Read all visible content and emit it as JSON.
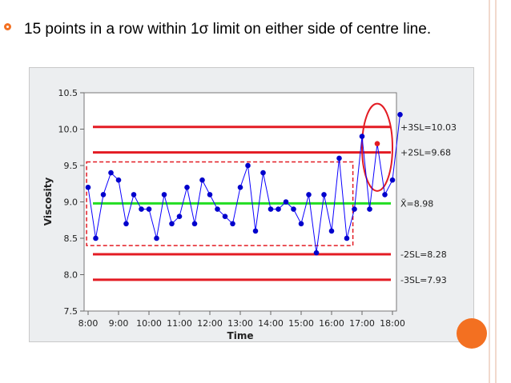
{
  "slide": {
    "bullet_text": "15 points in a row within 1σ limit on either side of centre line."
  },
  "colors": {
    "accent": "#f37021",
    "control_line": "#e31b23",
    "centre_line": "#22dd22",
    "series": "#0b00ff",
    "point": "#0000cc",
    "highlight_point": "#e31b23"
  },
  "chart_data": {
    "type": "line",
    "xlabel": "Time",
    "ylabel": "Viscosity",
    "ylim": [
      7.5,
      10.5
    ],
    "yticks": [
      "7.5",
      "8.0",
      "8.5",
      "9.0",
      "9.5",
      "10.0",
      "10.5"
    ],
    "xticks": [
      "8:00",
      "9:00",
      "10:00",
      "11:00",
      "12:00",
      "13:00",
      "14:00",
      "15:00",
      "16:00",
      "17:00",
      "18:00"
    ],
    "x_start_hour": 8,
    "x_end_hour": 18,
    "x": [
      8.0,
      8.25,
      8.5,
      8.75,
      9.0,
      9.25,
      9.5,
      9.75,
      10.0,
      10.25,
      10.5,
      10.75,
      11.0,
      11.25,
      11.5,
      11.75,
      12.0,
      12.25,
      12.5,
      12.75,
      13.0,
      13.25,
      13.5,
      13.75,
      14.0,
      14.25,
      14.5,
      14.75,
      15.0,
      15.25,
      15.5,
      15.75,
      16.0,
      16.25,
      16.5,
      16.75,
      17.0,
      17.25,
      17.5,
      17.75,
      18.0,
      18.25
    ],
    "values": [
      9.2,
      8.5,
      9.1,
      9.4,
      9.3,
      8.7,
      9.1,
      8.9,
      8.9,
      8.5,
      9.1,
      8.7,
      8.8,
      9.2,
      8.7,
      9.3,
      9.1,
      8.9,
      8.8,
      8.7,
      9.2,
      9.5,
      8.6,
      9.4,
      8.9,
      8.9,
      9.0,
      8.9,
      8.7,
      9.1,
      8.3,
      9.1,
      8.6,
      9.6,
      8.5,
      8.9,
      9.9,
      8.9,
      9.8,
      9.1,
      9.3,
      10.2
    ],
    "highlight_index": 38,
    "control_lines": [
      {
        "label": "+3SL=10.03",
        "value": 10.03,
        "color": "#e31b23"
      },
      {
        "label": "+2SL=9.68",
        "value": 9.68,
        "color": "#e31b23"
      },
      {
        "label": "X̄=8.98",
        "value": 8.98,
        "color": "#22dd22"
      },
      {
        "label": "-2SL=8.28",
        "value": 8.28,
        "color": "#e31b23"
      },
      {
        "label": "-3SL=7.93",
        "value": 7.93,
        "color": "#e31b23"
      }
    ],
    "annotations": [
      {
        "type": "dashed-box",
        "x_from": 7.95,
        "x_to": 16.7,
        "y_from": 8.4,
        "y_to": 9.55
      },
      {
        "type": "ellipse",
        "x_center": 17.5,
        "y_center": 9.75,
        "x_radius": 0.5,
        "y_radius": 0.6
      }
    ],
    "grid": false,
    "legend": "none"
  }
}
